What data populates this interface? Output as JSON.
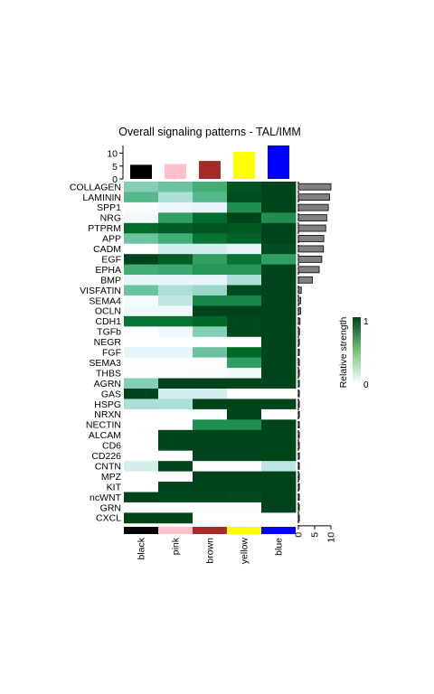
{
  "chart_data": {
    "type": "heatmap",
    "title": "Overall signaling patterns - TAL/IMM",
    "columns": [
      "black",
      "pink",
      "brown",
      "yellow",
      "blue"
    ],
    "column_colors": [
      "#000000",
      "#ffc0cb",
      "#a52a2a",
      "#ffff00",
      "#0000ff"
    ],
    "rows": [
      "COLLAGEN",
      "LAMININ",
      "SPP1",
      "NRG",
      "PTPRM",
      "APP",
      "CADM",
      "EGF",
      "EPHA",
      "BMP",
      "VISFATIN",
      "SEMA4",
      "OCLN",
      "CDH1",
      "TGFb",
      "NEGR",
      "FGF",
      "SEMA3",
      "THBS",
      "AGRN",
      "GAS",
      "HSPG",
      "NRXN",
      "NECTIN",
      "ALCAM",
      "CD6",
      "CD226",
      "CNTN",
      "MPZ",
      "KIT",
      "ncWNT",
      "GRN",
      "CXCL"
    ],
    "values": [
      [
        0.45,
        0.5,
        0.6,
        0.92,
        1.0
      ],
      [
        0.55,
        0.35,
        0.55,
        0.95,
        1.0
      ],
      [
        0.05,
        0.15,
        0.2,
        0.7,
        1.0
      ],
      [
        0.1,
        0.65,
        0.8,
        1.0,
        0.7
      ],
      [
        0.8,
        0.88,
        0.92,
        0.9,
        1.0
      ],
      [
        0.5,
        0.6,
        0.78,
        0.85,
        1.0
      ],
      [
        0.0,
        0.25,
        0.25,
        0.2,
        0.95
      ],
      [
        1.0,
        0.88,
        0.65,
        0.78,
        0.65
      ],
      [
        0.6,
        0.62,
        0.68,
        0.68,
        1.0
      ],
      [
        0.2,
        0.2,
        0.2,
        0.35,
        1.0
      ],
      [
        0.5,
        0.35,
        0.4,
        0.96,
        1.0
      ],
      [
        0.08,
        0.3,
        0.72,
        0.72,
        1.0
      ],
      [
        0.12,
        0.12,
        1.0,
        1.0,
        1.0
      ],
      [
        0.78,
        0.78,
        0.82,
        0.98,
        1.0
      ],
      [
        0.05,
        0.15,
        0.45,
        0.98,
        1.0
      ],
      [
        0.0,
        0.0,
        0.0,
        0.0,
        1.0
      ],
      [
        0.2,
        0.2,
        0.5,
        0.82,
        1.0
      ],
      [
        0.0,
        0.0,
        0.0,
        0.65,
        1.0
      ],
      [
        0.03,
        0.03,
        0.05,
        0.1,
        1.0
      ],
      [
        0.45,
        1.0,
        1.0,
        1.0,
        1.0
      ],
      [
        1.0,
        0.25,
        0.25,
        0.0,
        0.0
      ],
      [
        0.35,
        0.35,
        1.0,
        1.0,
        1.0
      ],
      [
        0.0,
        0.03,
        0.03,
        1.0,
        0.0
      ],
      [
        0.0,
        0.0,
        0.7,
        0.7,
        1.0
      ],
      [
        0.0,
        1.0,
        1.0,
        1.0,
        1.0
      ],
      [
        0.0,
        1.0,
        1.0,
        1.0,
        1.0
      ],
      [
        0.0,
        0.0,
        1.0,
        1.0,
        1.0
      ],
      [
        0.25,
        1.0,
        0.0,
        0.0,
        0.3
      ],
      [
        0.0,
        0.0,
        1.0,
        1.0,
        1.0
      ],
      [
        0.0,
        1.0,
        1.0,
        1.0,
        1.0
      ],
      [
        1.0,
        0.98,
        0.98,
        0.96,
        1.0
      ],
      [
        0.0,
        0.0,
        0.05,
        0.05,
        1.0
      ],
      [
        1.0,
        1.0,
        0.0,
        0.0,
        0.0
      ]
    ],
    "column_totals": [
      5.5,
      5.8,
      7.0,
      10.5,
      13.0
    ],
    "column_totals_axis": {
      "ticks": [
        0,
        5,
        10
      ],
      "ylim": [
        0,
        13
      ]
    },
    "row_totals": [
      10.0,
      9.6,
      9.2,
      8.7,
      8.4,
      7.8,
      7.7,
      7.2,
      6.4,
      4.3,
      0.9,
      0.7,
      0.7,
      0.5,
      0.35,
      0.3,
      0.3,
      0.3,
      0.3,
      0.3,
      0.3,
      0.3,
      0.3,
      0.3,
      0.3,
      0.3,
      0.3,
      0.3,
      0.3,
      0.3,
      0.3,
      0.3,
      0.3
    ],
    "row_totals_axis": {
      "ticks": [
        0,
        5,
        10
      ],
      "xlim": [
        0,
        10
      ]
    },
    "legend": {
      "title": "Relative strength",
      "min_label": "0",
      "max_label": "1",
      "low_color": "#ffffff",
      "high_color": "#00441b"
    },
    "grid": false
  }
}
